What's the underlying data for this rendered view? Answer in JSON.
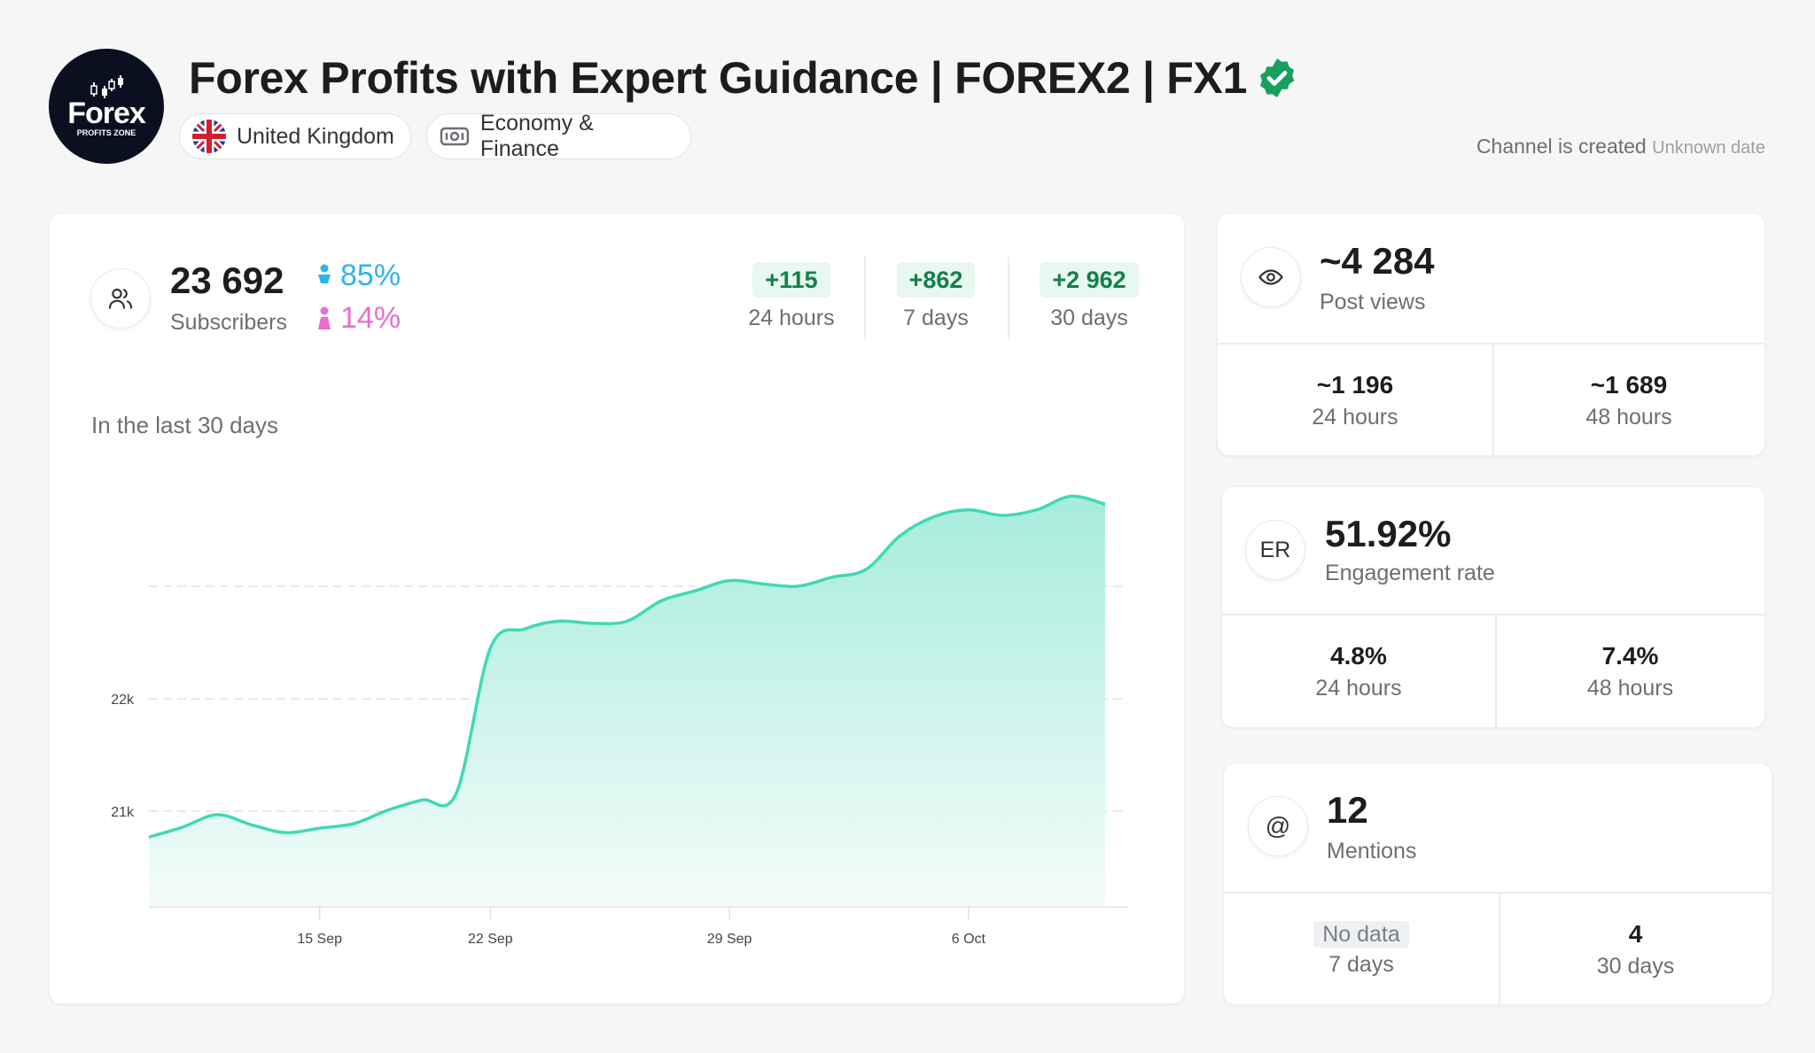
{
  "channel": {
    "logo_text": "Forex",
    "logo_subtext": "PROFITS ZONE",
    "title": "Forex Profits with Expert Guidance | FOREX2 | FX1",
    "verified": true,
    "country": "United Kingdom",
    "category": "Economy & Finance",
    "created_label": "Channel is created",
    "created_value": "Unknown date"
  },
  "subscribers": {
    "value": "23 692",
    "label": "Subscribers",
    "male_pct": "85%",
    "female_pct": "14%",
    "deltas": [
      {
        "value": "+115",
        "label": "24 hours"
      },
      {
        "value": "+862",
        "label": "7 days"
      },
      {
        "value": "+2 962",
        "label": "30 days"
      }
    ],
    "period_label": "In the last 30 days"
  },
  "colors": {
    "accent_line": "#3fd9b6",
    "male": "#2fb4ea",
    "female": "#e86fd0",
    "positive": "#13804b",
    "verified": "#16a05d"
  },
  "chart_data": {
    "type": "area",
    "x": [
      "10 Sep",
      "11 Sep",
      "12 Sep",
      "13 Sep",
      "14 Sep",
      "15 Sep",
      "16 Sep",
      "18 Sep",
      "20 Sep",
      "21 Sep",
      "22 Sep",
      "23 Sep",
      "24 Sep",
      "25 Sep",
      "26 Sep",
      "27 Sep",
      "28 Sep",
      "29 Sep",
      "30 Sep",
      "1 Oct",
      "2 Oct",
      "3 Oct",
      "4 Oct",
      "5 Oct",
      "6 Oct",
      "7 Oct",
      "8 Oct",
      "9 Oct",
      "10 Oct"
    ],
    "values": [
      20770,
      20860,
      20970,
      20880,
      20810,
      20850,
      20890,
      21010,
      21100,
      21160,
      22450,
      22620,
      22690,
      22670,
      22690,
      22870,
      22960,
      23050,
      23020,
      23000,
      23080,
      23150,
      23450,
      23620,
      23680,
      23630,
      23680,
      23800,
      23730
    ],
    "x_ticks": [
      "15 Sep",
      "22 Sep",
      "29 Sep",
      "6 Oct"
    ],
    "y_ticks": [
      {
        "value": 21000,
        "label": "21k"
      },
      {
        "value": 22000,
        "label": "22k"
      },
      {
        "value": 23000,
        "label": ""
      }
    ],
    "ylim": [
      20150,
      23850
    ],
    "grid": true,
    "xlabel": "",
    "ylabel": ""
  },
  "post_views": {
    "value": "~4 284",
    "label": "Post views",
    "cells": [
      {
        "value": "~1 196",
        "label": "24 hours"
      },
      {
        "value": "~1 689",
        "label": "48 hours"
      }
    ]
  },
  "engagement": {
    "icon_text": "ER",
    "value": "51.92%",
    "label": "Engagement rate",
    "cells": [
      {
        "value": "4.8%",
        "label": "24 hours"
      },
      {
        "value": "7.4%",
        "label": "48 hours"
      }
    ]
  },
  "mentions": {
    "icon_text": "@",
    "value": "12",
    "label": "Mentions",
    "cells": [
      {
        "value": "No data",
        "label": "7 days"
      },
      {
        "value": "4",
        "label": "30 days"
      }
    ]
  }
}
